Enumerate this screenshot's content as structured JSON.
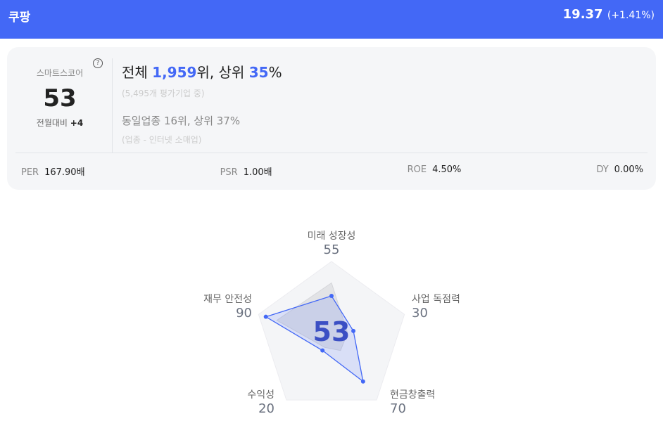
{
  "header": {
    "company": "쿠팡",
    "price": "19.37",
    "change": "(+1.41%)",
    "color": "#4368f6"
  },
  "score_card": {
    "label": "스마트스코어",
    "help_icon": "?",
    "score": "53",
    "mom_label": "전월대비",
    "mom_value": "+4",
    "overall_prefix": "전체 ",
    "overall_rank": "1,959",
    "overall_mid": "위, 상위 ",
    "overall_pct": "35",
    "overall_pct_sign": "%",
    "overall_sub": "(5,495개 평가기업 중)",
    "industry": "동일업종 16위, 상위 37%",
    "industry_sub": "(업종 - 인터넷 소매업)"
  },
  "metrics": [
    {
      "key": "PER",
      "value": "167.90배"
    },
    {
      "key": "PSR",
      "value": "1.00배"
    },
    {
      "key": "ROE",
      "value": "4.50%"
    },
    {
      "key": "DY",
      "value": "0.00%"
    }
  ],
  "chart_data": {
    "type": "radar",
    "center_label": "53",
    "max": 100,
    "axes": [
      "미래 성장성",
      "사업 독점력",
      "현금창출력",
      "수익성",
      "재무 안전성"
    ],
    "series": [
      {
        "values": [
          55,
          30,
          70,
          20,
          90
        ],
        "color": "#4368f6"
      },
      {
        "values": [
          72,
          22,
          20,
          15,
          75
        ],
        "color": "#c8c8cc"
      }
    ]
  }
}
